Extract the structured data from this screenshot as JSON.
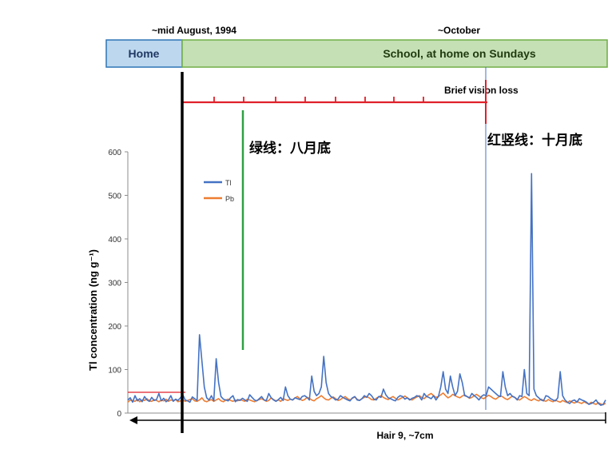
{
  "timeline": {
    "left_date": "~mid August, 1994",
    "right_date": "~October",
    "home_label": "Home",
    "school_label": "School, at home on Sundays",
    "event_label": "Brief vision loss"
  },
  "annotations": {
    "green_line_label": "绿线：八月底",
    "red_line_label": "红竖线：十月底"
  },
  "colors": {
    "home_fill": "#bdd7ee",
    "home_border": "#2e75b6",
    "school_fill": "#c5e0b4",
    "school_border": "#70ad47",
    "tl_series": "#4472c4",
    "pb_series": "#ed7d31",
    "annotation_red": "#e0202a",
    "annotation_green": "#2ea043",
    "axis_bold": "#000000"
  },
  "chart_data": {
    "type": "line",
    "title": "",
    "xlabel": "Hair 9, ~7cm",
    "ylabel": "Tl concentration (ng g⁻¹)",
    "ylim": [
      0,
      600
    ],
    "yticks": [
      0,
      100,
      200,
      300,
      400,
      500,
      600
    ],
    "grid": false,
    "legend": "top-left",
    "x": [
      0,
      3,
      6,
      9,
      12,
      15,
      18,
      21,
      24,
      27,
      30,
      33,
      36,
      39,
      42,
      45,
      48,
      51,
      54,
      57,
      60,
      63,
      66,
      69,
      72,
      75,
      78,
      81,
      84,
      87,
      90,
      93,
      96,
      99,
      102,
      105,
      108,
      111,
      114,
      117,
      120,
      123,
      126,
      129,
      132,
      135,
      138,
      141,
      144,
      147,
      150,
      153,
      156,
      159,
      162,
      165,
      168,
      171,
      174,
      177,
      180,
      183,
      186,
      189,
      192,
      195,
      198,
      201,
      204,
      207,
      210,
      213,
      216,
      219,
      222,
      225,
      228,
      231,
      234,
      237,
      240,
      243,
      246,
      249,
      252,
      255,
      258,
      261,
      264,
      267,
      270,
      273,
      276,
      279,
      282,
      285,
      288,
      291,
      294,
      297,
      300,
      303,
      306,
      309,
      312,
      315,
      318,
      321,
      324,
      327,
      330,
      333,
      336,
      339,
      342,
      345,
      348,
      351,
      354,
      357,
      360,
      363,
      366,
      369,
      372,
      375,
      378,
      381,
      384,
      387,
      390,
      393,
      396,
      399,
      402,
      405,
      408,
      411,
      414,
      417,
      420,
      423,
      426,
      429,
      432,
      435,
      438,
      441,
      444,
      447,
      450,
      453,
      456,
      459,
      462,
      465,
      468,
      471,
      474,
      477,
      480,
      483,
      486,
      489,
      492,
      495,
      498,
      501,
      504,
      507,
      510,
      513,
      516,
      519,
      522,
      525,
      528,
      531,
      534,
      537,
      540,
      543,
      546,
      549,
      552,
      555,
      558,
      561,
      564,
      567,
      570,
      573,
      576,
      579,
      582,
      585,
      588,
      591,
      594,
      597,
      600
    ],
    "series": [
      {
        "name": "Tl",
        "values": [
          30,
          35,
          25,
          40,
          28,
          33,
          26,
          38,
          30,
          27,
          36,
          29,
          31,
          45,
          28,
          34,
          26,
          30,
          40,
          27,
          32,
          29,
          35,
          42,
          30,
          28,
          25,
          37,
          33,
          29,
          180,
          120,
          60,
          35,
          30,
          40,
          28,
          125,
          70,
          38,
          32,
          30,
          28,
          35,
          40,
          26,
          31,
          29,
          34,
          30,
          27,
          42,
          36,
          30,
          28,
          33,
          38,
          30,
          29,
          45,
          35,
          30,
          27,
          31,
          36,
          29,
          60,
          40,
          32,
          30,
          35,
          33,
          31,
          38,
          40,
          36,
          30,
          85,
          50,
          40,
          45,
          60,
          130,
          70,
          45,
          38,
          35,
          30,
          32,
          40,
          36,
          33,
          30,
          28,
          35,
          38,
          30,
          29,
          33,
          40,
          36,
          45,
          40,
          32,
          30,
          38,
          36,
          55,
          42,
          35,
          33,
          30,
          28,
          36,
          40,
          38,
          32,
          35,
          30,
          34,
          36,
          40,
          38,
          30,
          45,
          38,
          36,
          33,
          40,
          30,
          38,
          60,
          95,
          55,
          45,
          85,
          60,
          40,
          50,
          90,
          70,
          40,
          38,
          35,
          45,
          40,
          36,
          30,
          38,
          42,
          40,
          60,
          55,
          50,
          45,
          40,
          38,
          95,
          60,
          40,
          45,
          38,
          36,
          30,
          40,
          38,
          100,
          45,
          40,
          550,
          55,
          40,
          35,
          30,
          28,
          40,
          38,
          33,
          30,
          28,
          35,
          95,
          40,
          30,
          25,
          22,
          28,
          30,
          25,
          33,
          30,
          28,
          25,
          20,
          22,
          25,
          30,
          22,
          18,
          20,
          30
        ],
        "color": "#4472c4"
      },
      {
        "name": "Pb",
        "values": [
          25,
          30,
          28,
          27,
          32,
          26,
          30,
          29,
          33,
          28,
          27,
          31,
          29,
          26,
          30,
          28,
          32,
          27,
          30,
          29,
          31,
          26,
          28,
          30,
          27,
          29,
          31,
          33,
          28,
          27,
          30,
          35,
          28,
          26,
          29,
          31,
          27,
          30,
          33,
          28,
          26,
          30,
          32,
          29,
          27,
          30,
          28,
          31,
          29,
          27,
          32,
          30,
          28,
          26,
          29,
          31,
          33,
          30,
          27,
          29,
          35,
          31,
          28,
          30,
          27,
          33,
          31,
          29,
          32,
          30,
          35,
          38,
          33,
          29,
          31,
          36,
          34,
          30,
          28,
          33,
          36,
          40,
          35,
          31,
          30,
          34,
          37,
          33,
          29,
          31,
          35,
          38,
          33,
          30,
          34,
          37,
          32,
          29,
          33,
          36,
          38,
          35,
          31,
          30,
          34,
          37,
          40,
          36,
          33,
          31,
          35,
          38,
          34,
          30,
          33,
          36,
          39,
          35,
          32,
          30,
          34,
          37,
          40,
          36,
          33,
          38,
          42,
          45,
          40,
          36,
          38,
          42,
          46,
          40,
          35,
          38,
          43,
          40,
          37,
          35,
          39,
          42,
          38,
          34,
          36,
          40,
          43,
          39,
          35,
          33,
          37,
          41,
          38,
          34,
          32,
          36,
          40,
          37,
          33,
          31,
          35,
          39,
          36,
          32,
          30,
          34,
          38,
          35,
          31,
          29,
          33,
          30,
          28,
          32,
          29,
          27,
          31,
          28,
          26,
          30,
          27,
          25,
          29,
          26,
          24,
          28,
          25,
          23,
          27,
          24,
          22,
          26,
          23,
          21,
          25,
          22,
          20,
          24,
          21,
          19,
          23
        ],
        "color": "#ed7d31"
      }
    ]
  }
}
